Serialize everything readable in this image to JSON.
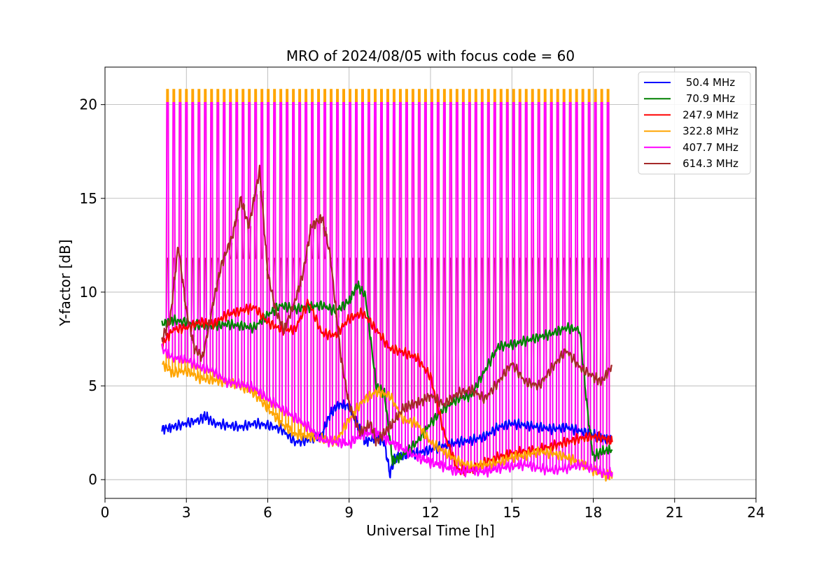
{
  "chart_data": {
    "type": "line",
    "title": "MRO of 2024/08/05 with focus code = 60",
    "xlabel": "Universal Time [h]",
    "ylabel": "Y-factor [dB]",
    "xlim": [
      0,
      24
    ],
    "ylim": [
      -1,
      22
    ],
    "xticks": [
      0,
      3,
      6,
      9,
      12,
      15,
      18,
      21,
      24
    ],
    "yticks": [
      0,
      5,
      10,
      15,
      20
    ],
    "grid": true,
    "legend_position": "top-right",
    "calibration_pulses": {
      "first_time_h": 2.28,
      "period_h": 0.232,
      "last_time_h": 18.6,
      "pulse_top_db": {
        "322.8 MHz": 20.8,
        "407.7 MHz": 20.1,
        "614.3 MHz": 11.8
      }
    },
    "series": [
      {
        "name": "50.4 MHz",
        "color": "#0000ff",
        "x": [
          2.1,
          2.5,
          3.0,
          3.5,
          3.7,
          4.0,
          4.5,
          5.0,
          5.5,
          6.0,
          6.5,
          7.0,
          7.5,
          8.0,
          8.3,
          8.6,
          9.0,
          9.3,
          9.6,
          10.0,
          10.3,
          10.5,
          10.7,
          11.0,
          11.5,
          12.0,
          12.5,
          13.0,
          13.5,
          14.0,
          14.5,
          15.0,
          15.5,
          16.0,
          16.5,
          17.0,
          17.5,
          18.0,
          18.3,
          18.7
        ],
        "y": [
          2.7,
          2.8,
          3.0,
          3.2,
          3.4,
          3.0,
          2.9,
          2.8,
          3.0,
          2.9,
          2.7,
          2.0,
          2.1,
          2.4,
          3.5,
          4.0,
          3.9,
          3.0,
          2.0,
          2.3,
          2.0,
          0.3,
          1.2,
          1.3,
          1.4,
          1.6,
          1.8,
          2.0,
          2.1,
          2.3,
          2.8,
          3.0,
          2.9,
          2.8,
          2.7,
          2.8,
          2.6,
          2.4,
          2.2,
          2.1
        ]
      },
      {
        "name": "70.9 MHz",
        "color": "#008000",
        "x": [
          2.1,
          2.5,
          3.0,
          3.5,
          4.0,
          4.5,
          5.0,
          5.5,
          6.0,
          6.5,
          7.0,
          7.5,
          8.0,
          8.5,
          9.0,
          9.3,
          9.6,
          10.0,
          10.3,
          10.6,
          11.0,
          11.5,
          12.0,
          12.5,
          13.0,
          13.5,
          14.0,
          14.5,
          15.0,
          15.5,
          16.0,
          16.5,
          17.0,
          17.5,
          17.8,
          18.0,
          18.3,
          18.7
        ],
        "y": [
          8.3,
          8.5,
          8.4,
          8.2,
          8.2,
          8.3,
          8.2,
          8.1,
          8.8,
          9.3,
          9.1,
          9.2,
          9.3,
          9.0,
          9.5,
          10.4,
          9.8,
          5.0,
          4.6,
          1.0,
          1.3,
          2.0,
          3.0,
          3.8,
          4.3,
          4.5,
          5.8,
          7.1,
          7.2,
          7.4,
          7.6,
          7.8,
          8.1,
          8.0,
          3.5,
          1.2,
          1.5,
          1.6
        ]
      },
      {
        "name": "247.9 MHz",
        "color": "#ff0000",
        "x": [
          2.1,
          2.5,
          3.0,
          3.5,
          4.0,
          4.5,
          5.0,
          5.5,
          6.0,
          6.5,
          7.0,
          7.5,
          8.0,
          8.5,
          9.0,
          9.5,
          10.0,
          10.5,
          11.0,
          11.5,
          12.0,
          12.5,
          13.0,
          13.5,
          14.0,
          14.5,
          15.0,
          15.5,
          16.0,
          16.5,
          17.0,
          17.5,
          18.0,
          18.5,
          18.7
        ],
        "y": [
          7.2,
          8.0,
          8.1,
          8.4,
          8.3,
          8.8,
          9.0,
          9.2,
          8.4,
          8.0,
          8.0,
          9.5,
          7.8,
          7.7,
          8.6,
          8.9,
          8.0,
          7.0,
          6.8,
          6.5,
          5.5,
          2.5,
          0.5,
          0.5,
          0.9,
          1.2,
          1.4,
          1.5,
          1.6,
          1.8,
          2.0,
          2.2,
          2.3,
          2.2,
          2.0
        ]
      },
      {
        "name": "322.8 MHz",
        "color": "#ffa500",
        "x": [
          2.1,
          2.5,
          3.0,
          3.5,
          4.0,
          4.5,
          5.0,
          5.5,
          6.0,
          6.5,
          7.0,
          7.5,
          8.0,
          8.5,
          9.0,
          9.5,
          10.0,
          10.5,
          11.0,
          11.5,
          12.0,
          12.5,
          13.0,
          13.5,
          14.0,
          14.5,
          15.0,
          15.5,
          16.0,
          16.5,
          17.0,
          17.5,
          18.0,
          18.5,
          18.7
        ],
        "y": [
          6.2,
          5.7,
          5.8,
          5.4,
          5.3,
          5.2,
          5.0,
          4.6,
          3.8,
          3.0,
          2.4,
          2.3,
          2.2,
          2.0,
          3.2,
          4.2,
          4.7,
          4.5,
          3.2,
          3.0,
          2.0,
          1.5,
          1.0,
          0.7,
          0.8,
          0.9,
          1.2,
          1.3,
          1.5,
          1.4,
          1.2,
          0.9,
          0.5,
          0.2,
          0.3
        ]
      },
      {
        "name": "407.7 MHz",
        "color": "#ff00ff",
        "x": [
          2.1,
          2.5,
          3.0,
          3.5,
          4.0,
          4.5,
          5.0,
          5.5,
          6.0,
          6.5,
          7.0,
          7.5,
          8.0,
          8.5,
          9.0,
          9.5,
          10.0,
          10.5,
          11.0,
          11.5,
          12.0,
          12.5,
          13.0,
          13.5,
          14.0,
          14.5,
          15.0,
          15.5,
          16.0,
          16.5,
          17.0,
          17.5,
          18.0,
          18.5,
          18.7
        ],
        "y": [
          7.0,
          6.5,
          6.4,
          6.0,
          5.8,
          5.2,
          5.1,
          4.9,
          4.3,
          3.8,
          3.3,
          2.8,
          2.1,
          2.0,
          1.9,
          2.4,
          2.5,
          2.0,
          1.6,
          1.2,
          0.9,
          0.7,
          0.4,
          0.5,
          0.4,
          0.6,
          0.7,
          0.8,
          0.6,
          0.5,
          0.6,
          0.8,
          0.6,
          0.3,
          0.4
        ]
      },
      {
        "name": "614.3 MHz",
        "color": "#a52a2a",
        "x": [
          2.1,
          2.4,
          2.7,
          3.0,
          3.3,
          3.6,
          4.0,
          4.3,
          4.7,
          5.0,
          5.3,
          5.7,
          6.0,
          6.3,
          6.6,
          7.0,
          7.3,
          7.6,
          8.0,
          8.3,
          8.7,
          9.0,
          9.4,
          9.8,
          10.0,
          10.3,
          10.6,
          11.0,
          11.3,
          11.7,
          12.0,
          12.5,
          13.0,
          13.5,
          14.0,
          14.5,
          15.0,
          15.5,
          16.0,
          16.5,
          17.0,
          17.5,
          18.0,
          18.3,
          18.7
        ],
        "y": [
          7.5,
          8.5,
          12.5,
          9.0,
          7.0,
          6.5,
          9.5,
          11.5,
          13.0,
          15.0,
          13.5,
          16.5,
          11.0,
          9.0,
          8.0,
          9.5,
          11.0,
          13.5,
          14.0,
          12.0,
          6.5,
          4.0,
          2.5,
          3.0,
          2.0,
          2.5,
          3.0,
          3.8,
          4.0,
          4.2,
          4.5,
          4.0,
          4.6,
          4.8,
          4.3,
          5.2,
          6.2,
          5.2,
          5.0,
          6.0,
          6.9,
          6.0,
          5.5,
          5.2,
          6.1
        ]
      }
    ]
  }
}
